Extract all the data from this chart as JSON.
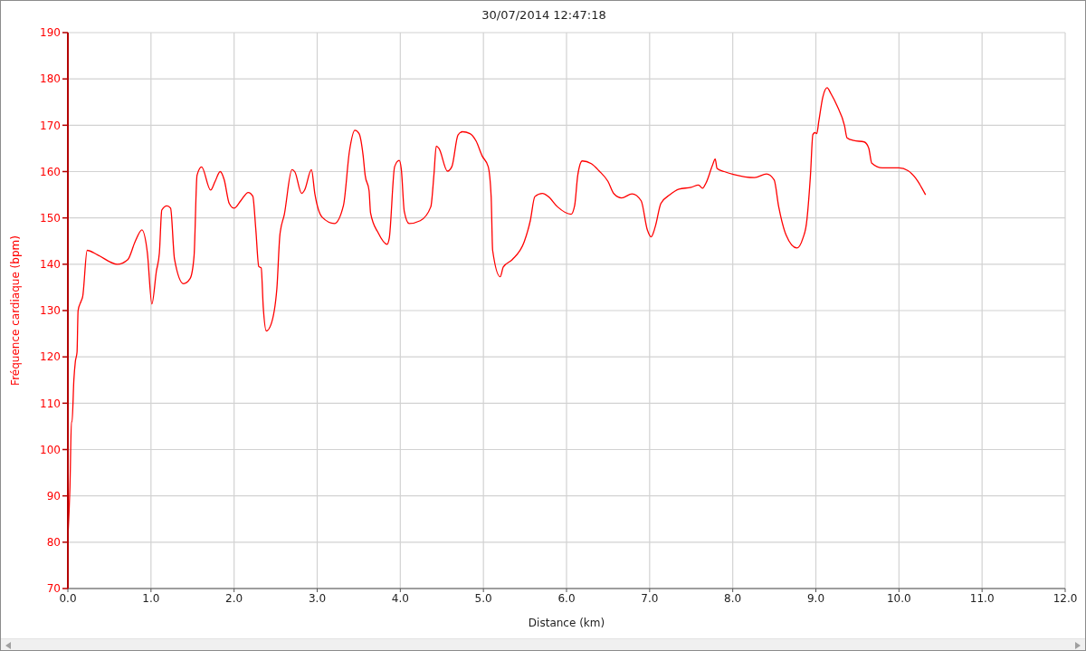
{
  "chart_data": {
    "type": "line",
    "title": "30/07/2014 12:47:18",
    "xlabel": "Distance (km)",
    "ylabel": "Fréquence cardiaque (bpm)",
    "xlim": [
      0,
      12
    ],
    "xticks": [
      {
        "value": 0,
        "label": "0.0"
      },
      {
        "value": 1,
        "label": "1.0"
      },
      {
        "value": 2,
        "label": "2.0"
      },
      {
        "value": 3,
        "label": "3.0"
      },
      {
        "value": 4,
        "label": "4.0"
      },
      {
        "value": 5,
        "label": "5.0"
      },
      {
        "value": 6,
        "label": "6.0"
      },
      {
        "value": 7,
        "label": "7.0"
      },
      {
        "value": 8,
        "label": "8.0"
      },
      {
        "value": 9,
        "label": "9.0"
      },
      {
        "value": 10,
        "label": "10.0"
      },
      {
        "value": 11,
        "label": "11.0"
      },
      {
        "value": 12,
        "label": "12.0"
      }
    ],
    "ylim": [
      70,
      190
    ],
    "yticks": [
      70,
      80,
      90,
      100,
      110,
      120,
      130,
      140,
      150,
      160,
      170,
      180,
      190
    ],
    "grid": true,
    "color": "#ff0000",
    "x": [
      0.0,
      0.025,
      0.043,
      0.05,
      0.072,
      0.09,
      0.11,
      0.123,
      0.159,
      0.178,
      0.232,
      0.359,
      0.594,
      0.721,
      0.812,
      0.891,
      0.957,
      1.011,
      1.065,
      1.101,
      1.13,
      1.192,
      1.236,
      1.283,
      1.391,
      1.471,
      1.518,
      1.554,
      1.609,
      1.717,
      1.772,
      1.833,
      1.88,
      1.942,
      2.0,
      2.08,
      2.17,
      2.225,
      2.261,
      2.297,
      2.326,
      2.351,
      2.388,
      2.442,
      2.514,
      2.551,
      2.605,
      2.696,
      2.732,
      2.812,
      2.848,
      2.931,
      2.971,
      3.062,
      3.207,
      3.316,
      3.388,
      3.453,
      3.504,
      3.551,
      3.577,
      3.624,
      3.642,
      3.733,
      3.841,
      3.867,
      3.932,
      3.987,
      4.012,
      4.048,
      4.106,
      4.24,
      4.367,
      4.404,
      4.433,
      4.465,
      4.567,
      4.621,
      4.694,
      4.748,
      4.839,
      4.912,
      4.984,
      5.057,
      5.093,
      5.111,
      5.202,
      5.239,
      5.347,
      5.492,
      5.564,
      5.619,
      5.71,
      5.782,
      5.891,
      6.055,
      6.098,
      6.135,
      6.189,
      6.298,
      6.389,
      6.498,
      6.571,
      6.662,
      6.789,
      6.898,
      6.971,
      7.018,
      7.069,
      7.135,
      7.244,
      7.353,
      7.498,
      7.589,
      7.636,
      7.68,
      7.753,
      7.789,
      7.811,
      7.898,
      8.007,
      8.262,
      8.407,
      8.498,
      8.553,
      8.644,
      8.771,
      8.844,
      8.887,
      8.935,
      8.964,
      8.989,
      9.011,
      9.036,
      9.084,
      9.135,
      9.182,
      9.255,
      9.345,
      9.375,
      9.455,
      9.582,
      9.636,
      9.673,
      9.8,
      10.0,
      10.109,
      10.2,
      10.32
    ],
    "values": [
      81,
      92,
      106,
      106,
      115,
      119,
      121,
      130,
      132,
      133,
      143,
      142,
      140,
      141,
      145,
      147.4,
      142.4,
      131.4,
      138.5,
      142.4,
      151.7,
      152.6,
      152.1,
      141.1,
      135.8,
      136.9,
      141.7,
      159.2,
      161.0,
      156.0,
      157.9,
      160.0,
      158.3,
      153.1,
      152.1,
      153.7,
      155.5,
      154.7,
      147.6,
      139.5,
      139.2,
      130.7,
      125.6,
      126.9,
      134.6,
      146.3,
      150.8,
      160.4,
      159.9,
      155.3,
      156.0,
      160.4,
      155.3,
      150.1,
      148.8,
      152.7,
      164.4,
      168.9,
      168.2,
      163.7,
      159.2,
      155.9,
      151.1,
      146.8,
      144.3,
      145.6,
      161.1,
      162.4,
      160.5,
      151.4,
      148.8,
      149.4,
      152.4,
      159.2,
      165.5,
      165.0,
      160.1,
      161.1,
      167.9,
      168.6,
      168.2,
      166.6,
      163.4,
      161.1,
      154.6,
      143.0,
      137.3,
      139.4,
      141.0,
      144.9,
      149.4,
      154.6,
      155.3,
      154.6,
      152.4,
      150.8,
      152.7,
      159.2,
      162.3,
      161.7,
      160.2,
      157.9,
      155.2,
      154.3,
      155.2,
      153.7,
      147.5,
      145.9,
      148.2,
      153.1,
      155.0,
      156.2,
      156.6,
      157.1,
      156.4,
      157.6,
      161.2,
      162.7,
      160.7,
      160.0,
      159.4,
      158.7,
      159.5,
      158.2,
      152.4,
      146.2,
      143.5,
      145.6,
      148.8,
      159.2,
      168.0,
      168.4,
      168.2,
      170.9,
      176.1,
      178.1,
      176.8,
      174.2,
      169.9,
      167.3,
      166.7,
      166.4,
      165.1,
      161.8,
      160.8,
      160.8,
      160.2,
      158.6,
      155.0
    ]
  }
}
